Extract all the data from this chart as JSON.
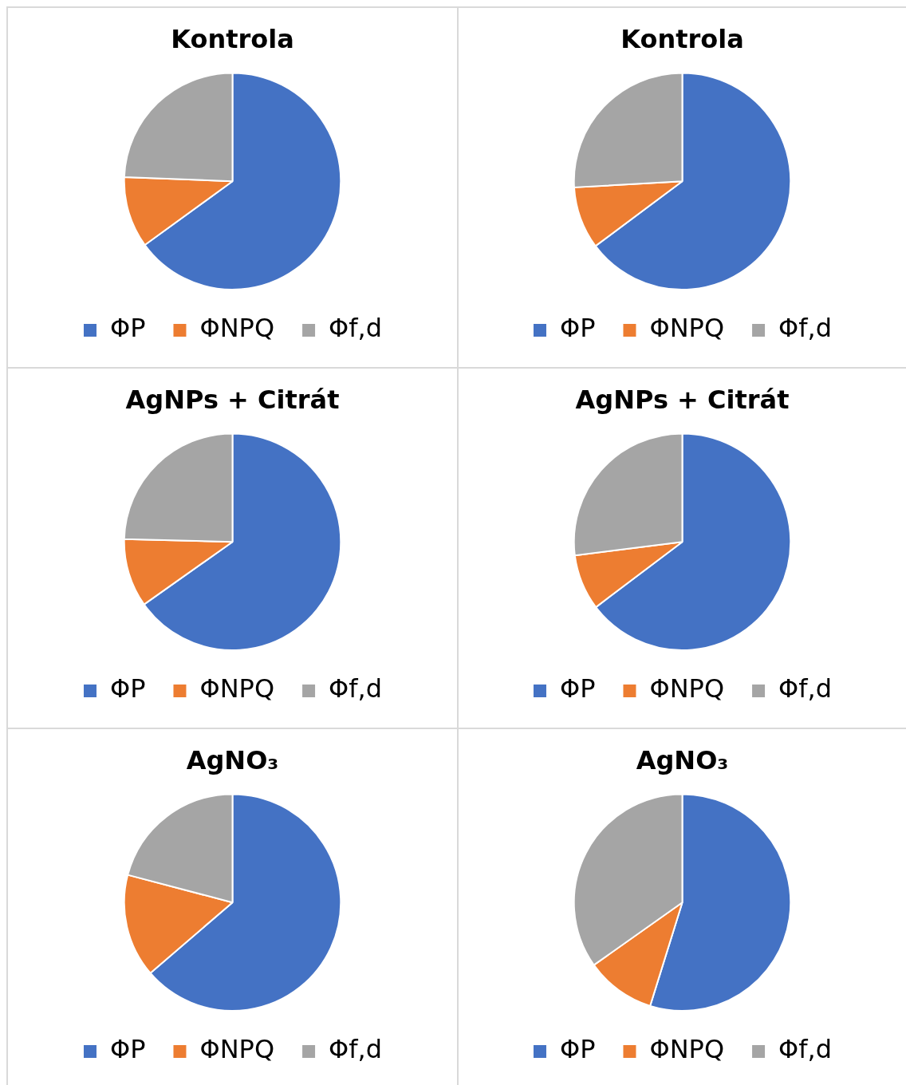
{
  "chart_data": [
    {
      "type": "pie",
      "title": "Kontrola",
      "categories": [
        "ΦP",
        "ΦNPQ",
        "Φf,d"
      ],
      "values": [
        65,
        10.6,
        24.4
      ],
      "colors": [
        "#4472c4",
        "#ed7d31",
        "#a5a5a5"
      ],
      "legend": "bottom"
    },
    {
      "type": "pie",
      "title": "Kontrola",
      "categories": [
        "ΦP",
        "ΦNPQ",
        "Φf,d"
      ],
      "values": [
        64.8,
        9.3,
        25.9
      ],
      "colors": [
        "#4472c4",
        "#ed7d31",
        "#a5a5a5"
      ],
      "legend": "bottom"
    },
    {
      "type": "pie",
      "title": "AgNPs + Citrát",
      "categories": [
        "ΦP",
        "ΦNPQ",
        "Φf,d"
      ],
      "values": [
        65.2,
        10.2,
        24.6
      ],
      "colors": [
        "#4472c4",
        "#ed7d31",
        "#a5a5a5"
      ],
      "legend": "bottom"
    },
    {
      "type": "pie",
      "title": "AgNPs + Citrát",
      "categories": [
        "ΦP",
        "ΦNPQ",
        "Φf,d"
      ],
      "values": [
        64.7,
        8.3,
        27
      ],
      "colors": [
        "#4472c4",
        "#ed7d31",
        "#a5a5a5"
      ],
      "legend": "bottom"
    },
    {
      "type": "pie",
      "title": "AgNO₃",
      "categories": [
        "ΦP",
        "ΦNPQ",
        "Φf,d"
      ],
      "values": [
        63.7,
        15.4,
        20.9
      ],
      "colors": [
        "#4472c4",
        "#ed7d31",
        "#a5a5a5"
      ],
      "legend": "bottom"
    },
    {
      "type": "pie",
      "title": "AgNO₃",
      "categories": [
        "ΦP",
        "ΦNPQ",
        "Φf,d"
      ],
      "values": [
        54.8,
        10.4,
        34.8
      ],
      "colors": [
        "#4472c4",
        "#ed7d31",
        "#a5a5a5"
      ],
      "legend": "bottom"
    }
  ]
}
